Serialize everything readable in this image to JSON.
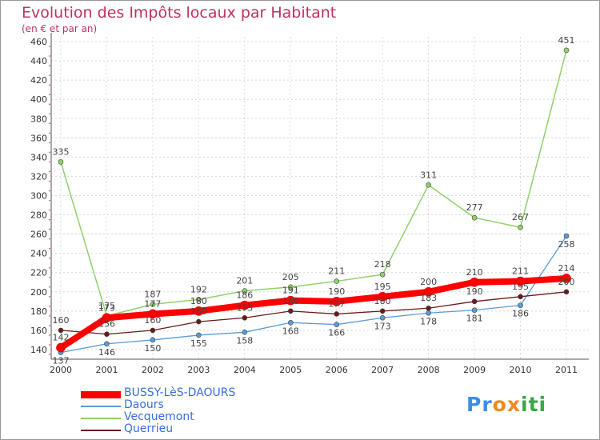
{
  "chart_data": {
    "type": "line",
    "title": "Evolution des Impôts locaux par Habitant",
    "subtitle": "(en € et par an)",
    "x": [
      "2000",
      "2001",
      "2002",
      "2003",
      "2004",
      "2005",
      "2006",
      "2007",
      "2008",
      "2009",
      "2010",
      "2011"
    ],
    "ylim": [
      130,
      465
    ],
    "yticks": [
      140,
      160,
      180,
      200,
      220,
      240,
      260,
      280,
      300,
      320,
      340,
      360,
      380,
      400,
      420,
      440,
      460
    ],
    "grid": true,
    "legend_position": "bottom-left",
    "series": [
      {
        "name": "BUSSY-LèS-DAOURS",
        "color": "#ff0000",
        "values": [
          142,
          173,
          177,
          180,
          186,
          191,
          190,
          195,
          200,
          210,
          211,
          214
        ],
        "labels": [
          "142",
          "173",
          "177",
          "180",
          "186",
          "191",
          "190",
          "195",
          "200",
          "210",
          "211",
          "214"
        ]
      },
      {
        "name": "Daours",
        "color": "#5b9bd5",
        "values": [
          137,
          146,
          150,
          155,
          158,
          168,
          166,
          173,
          178,
          181,
          186,
          258
        ],
        "labels": [
          "137",
          "146",
          "150",
          "155",
          "158",
          "168",
          "166",
          "173",
          "178",
          "181",
          "186",
          "258"
        ]
      },
      {
        "name": "Vecquemont",
        "color": "#8fd16a",
        "values": [
          335,
          175,
          187,
          192,
          201,
          205,
          211,
          218,
          311,
          277,
          267,
          451
        ],
        "labels": [
          "335",
          "175",
          "187",
          "192",
          "201",
          "205",
          "211",
          "218",
          "311",
          "277",
          "267",
          "451"
        ]
      },
      {
        "name": "Querrieu",
        "color": "#6b1a1a",
        "values": [
          160,
          156,
          160,
          169,
          173,
          180,
          177,
          180,
          183,
          190,
          195,
          200
        ],
        "labels": [
          "160",
          "156",
          "160",
          "169",
          "173",
          "180",
          "177",
          "180",
          "183",
          "190",
          "195",
          "200"
        ]
      }
    ]
  },
  "logo": {
    "text": "Proxiti",
    "letters": [
      {
        "ch": "P",
        "color": "#3a8ee6"
      },
      {
        "ch": "r",
        "color": "#3a8ee6"
      },
      {
        "ch": "o",
        "color": "#f08a1c"
      },
      {
        "ch": "x",
        "color": "#f08a1c"
      },
      {
        "ch": "i",
        "color": "#3aa64a"
      },
      {
        "ch": "t",
        "color": "#3aa64a"
      },
      {
        "ch": "i",
        "color": "#3aa64a"
      }
    ]
  }
}
